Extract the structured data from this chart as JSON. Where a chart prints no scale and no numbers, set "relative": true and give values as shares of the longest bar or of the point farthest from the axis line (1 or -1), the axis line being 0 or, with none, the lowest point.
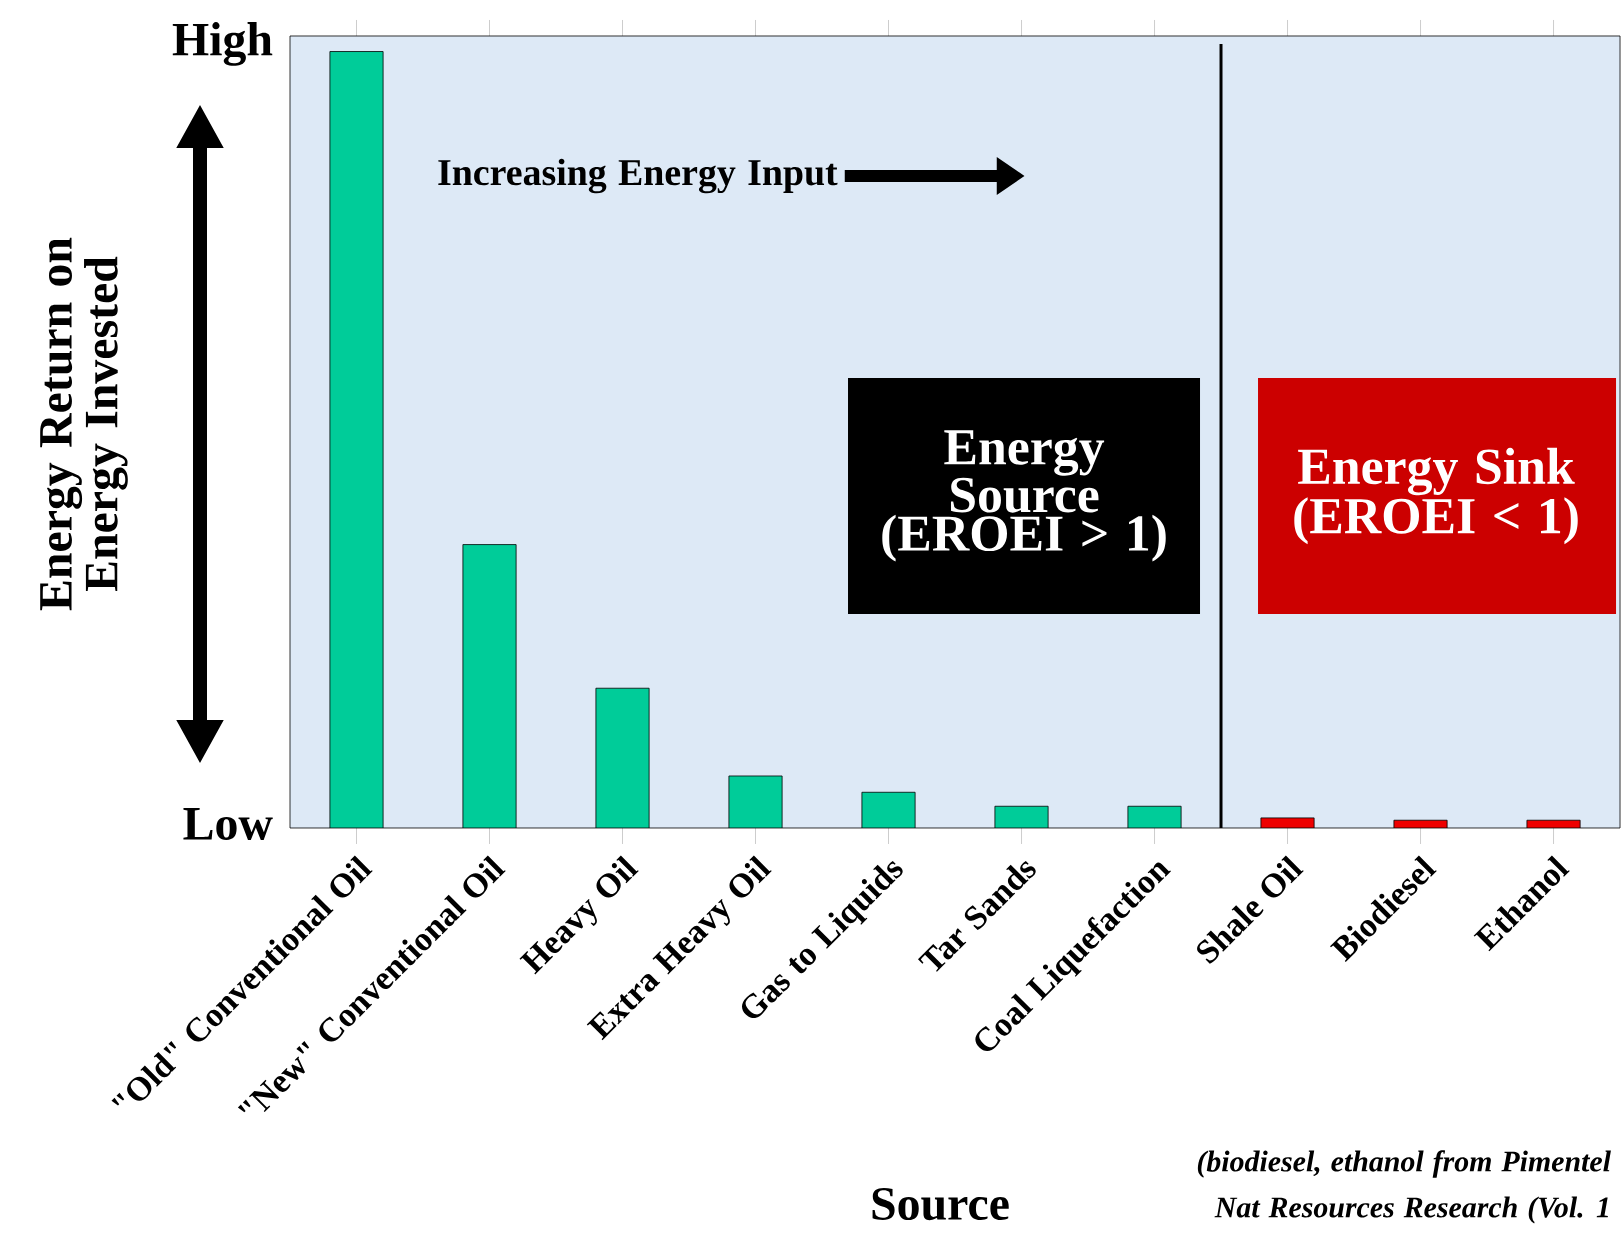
{
  "chart_data": {
    "type": "bar",
    "relative": true,
    "categories": [
      "\"Old\" Conventional Oil",
      "\"New\" Conventional Oil",
      "Heavy Oil",
      "Extra Heavy Oil",
      "Gas to Liquids",
      "Tar Sands",
      "Coal Liquefaction",
      "Shale Oil",
      "Biodiesel",
      "Ethanol"
    ],
    "values": [
      1,
      0.365,
      0.18,
      0.067,
      0.046,
      0.028,
      0.028,
      0.013,
      0.01,
      0.01
    ],
    "colors": [
      "#00cc99",
      "#00cc99",
      "#00cc99",
      "#00cc99",
      "#00cc99",
      "#00cc99",
      "#00cc99",
      "#ee0000",
      "#ee0000",
      "#ee0000"
    ],
    "xlabel": "Source",
    "ylabel": "Energy Return on Energy Invested",
    "annotations": [
      "High",
      "Low",
      "Increasing Energy Input",
      "Energy Source (EROEI > 1)",
      "Energy Sink (EROEI < 1)",
      "(biodiesel, ethanol from Pimentel",
      "Nat Resources Research (Vol. 1"
    ]
  }
}
